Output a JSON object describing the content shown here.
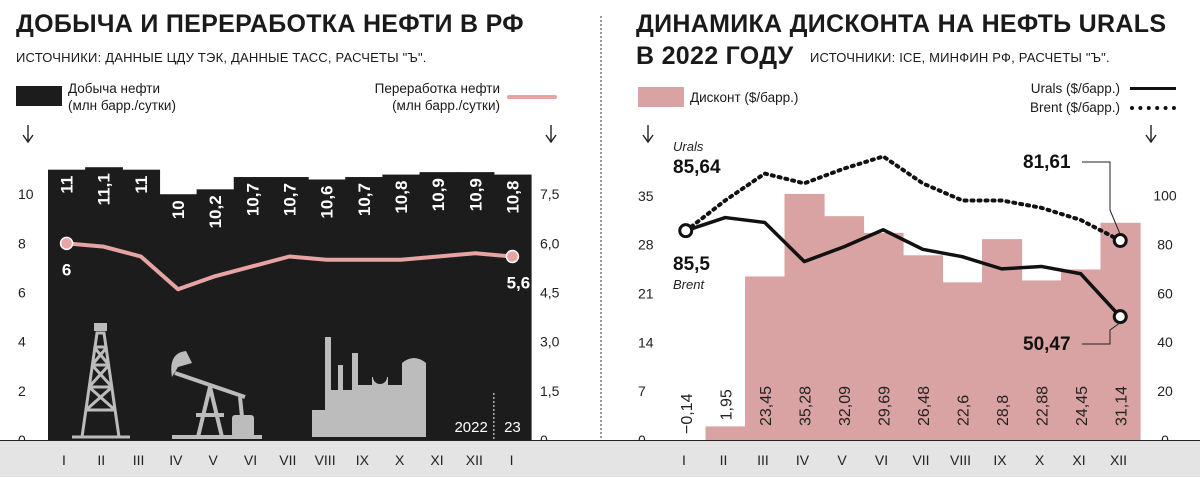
{
  "left": {
    "title": "ДОБЫЧА И ПЕРЕРАБОТКА НЕФТИ В РФ",
    "sources": "ИСТОЧНИКИ: ДАННЫЕ ЦДУ ТЭК, ДАННЫЕ ТАСС, РАСЧЕТЫ \"Ъ\".",
    "legend": {
      "production_l1": "Добыча нефти",
      "production_l2": "(млн барр./сутки)",
      "refining_l1": "Переработка нефти",
      "refining_l2": "(млн барр./сутки)"
    },
    "colors": {
      "bar": "#1c1c1c",
      "line": "#e8a3a3",
      "icons": "#bcbcbc"
    },
    "icons": [
      "oil-derrick-icon",
      "pumpjack-icon",
      "refinery-icon"
    ]
  },
  "right": {
    "title_l1": "ДИНАМИКА ДИСКОНТА НА НЕФТЬ URALS",
    "title_l2": "В 2022 ГОДУ",
    "sources": "ИСТОЧНИКИ: ICE, МИНФИН РФ, РАСЧЕТЫ \"Ъ\".",
    "legend": {
      "discount": "Дисконт ($/барр.)",
      "urals": "Urals  ($/барр.)",
      "brent": "Brent  ($/барр.)"
    },
    "colors": {
      "bar": "#d9a3a3",
      "line": "#111111"
    }
  },
  "chart_data": [
    {
      "type": "bar",
      "title": "ДОБЫЧА И ПЕРЕРАБОТКА НЕФТИ В РФ",
      "categories": [
        "I",
        "II",
        "III",
        "IV",
        "V",
        "VI",
        "VII",
        "VIII",
        "IX",
        "X",
        "XI",
        "XII",
        "I"
      ],
      "year_labels": [
        "2022",
        "23"
      ],
      "y_left": {
        "ticks": [
          "0",
          "2",
          "4",
          "6",
          "8",
          "10"
        ],
        "range": [
          0,
          11.8
        ]
      },
      "y_right": {
        "ticks": [
          "0",
          "1,5",
          "3,0",
          "4,5",
          "6,0",
          "7,5"
        ],
        "range": [
          0,
          8.85
        ]
      },
      "series": [
        {
          "name": "Добыча нефти (млн барр./сутки)",
          "type": "bar",
          "values": [
            11,
            11.1,
            11,
            10,
            10.2,
            10.7,
            10.7,
            10.6,
            10.7,
            10.8,
            10.9,
            10.9,
            10.8
          ],
          "labels": [
            "11",
            "11,1",
            "11",
            "10",
            "10,2",
            "10,7",
            "10,7",
            "10,6",
            "10,7",
            "10,8",
            "10,9",
            "10,9",
            "10,8"
          ]
        },
        {
          "name": "Переработка нефти (млн барр./сутки)",
          "type": "line",
          "axis": "right",
          "values": [
            6.0,
            5.9,
            5.6,
            4.6,
            5.0,
            5.3,
            5.6,
            5.5,
            5.5,
            5.5,
            5.6,
            5.7,
            5.6
          ],
          "start_label": "6",
          "end_label": "5,6"
        }
      ]
    },
    {
      "type": "bar",
      "title": "ДИНАМИКА ДИСКОНТА НА НЕФТЬ URALS В 2022 ГОДУ",
      "categories": [
        "I",
        "II",
        "III",
        "IV",
        "V",
        "VI",
        "VII",
        "VIII",
        "IX",
        "X",
        "XI",
        "XII"
      ],
      "y_left": {
        "ticks": [
          "0",
          "7",
          "14",
          "21",
          "28",
          "35"
        ],
        "range": [
          0,
          41
        ]
      },
      "y_right": {
        "ticks": [
          "0",
          "20",
          "40",
          "60",
          "80",
          "100"
        ],
        "range": [
          0,
          117
        ]
      },
      "series": [
        {
          "name": "Дисконт ($/барр.)",
          "type": "bar",
          "values": [
            -0.14,
            1.95,
            23.45,
            35.28,
            32.09,
            29.69,
            26.48,
            22.6,
            28.8,
            22.88,
            24.45,
            31.14
          ],
          "labels": [
            "−0,14",
            "1,95",
            "23,45",
            "35,28",
            "32,09",
            "29,69",
            "26,48",
            "22,6",
            "28,8",
            "22,88",
            "24,45",
            "31,14"
          ]
        },
        {
          "name": "Urals ($/барр.)",
          "type": "line",
          "axis": "right",
          "values": [
            85.64,
            91,
            89,
            73,
            79,
            86,
            78,
            75,
            70,
            71,
            68,
            50.47
          ],
          "start_label": "85,64",
          "start_name": "Urals",
          "end_label": "50,47"
        },
        {
          "name": "Brent ($/барр.)",
          "type": "line",
          "axis": "right",
          "dash": "dotted",
          "values": [
            85.5,
            98,
            109,
            105,
            111,
            116,
            105,
            98,
            98,
            95,
            90,
            81.61
          ],
          "start_label": "85,5",
          "start_name": "Brent",
          "end_label": "81,61"
        }
      ]
    }
  ]
}
